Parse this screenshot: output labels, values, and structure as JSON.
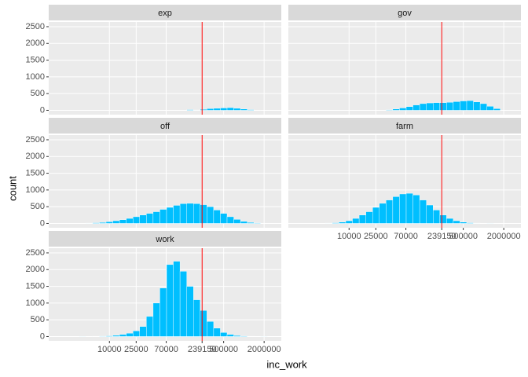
{
  "axis_labels": {
    "x": "inc_work",
    "y": "count"
  },
  "chart_data": [
    {
      "type": "histogram",
      "title": "exp",
      "log_x": true,
      "grid": true,
      "color": "#00bfff",
      "vline": 239150,
      "vline_color": "#ff0000",
      "bins": [
        3548,
        4467,
        5623,
        7079,
        8913,
        11220,
        14125,
        17783,
        22387,
        28184,
        35481,
        44668,
        56234,
        70795,
        89125,
        112202,
        141254,
        177828,
        223872,
        281838,
        354813,
        446684,
        562341,
        707946,
        891251,
        1122018,
        1412538,
        1778279,
        2238721
      ],
      "counts": [
        0,
        0,
        0,
        0,
        0,
        0,
        0,
        0,
        0,
        0,
        0,
        0,
        0,
        0,
        0,
        0,
        20,
        10,
        30,
        50,
        60,
        70,
        80,
        60,
        40,
        20,
        5,
        0
      ],
      "xlim": [
        1250,
        3600000
      ],
      "ylim": [
        -130,
        2640
      ],
      "xticks": [
        10000,
        25000,
        70000,
        239150,
        500000,
        2000000
      ],
      "yticks": [
        0,
        500,
        1000,
        1500,
        2000,
        2500
      ]
    },
    {
      "type": "histogram",
      "title": "gov",
      "log_x": true,
      "grid": true,
      "color": "#00bfff",
      "vline": 239150,
      "vline_color": "#ff0000",
      "bins": [
        3548,
        4467,
        5623,
        7079,
        8913,
        11220,
        14125,
        17783,
        22387,
        28184,
        35481,
        44668,
        56234,
        70795,
        89125,
        112202,
        141254,
        177828,
        223872,
        281838,
        354813,
        446684,
        562341,
        707946,
        891251,
        1122018,
        1412538,
        1778279,
        2238721
      ],
      "counts": [
        0,
        0,
        0,
        0,
        0,
        0,
        0,
        0,
        0,
        0,
        15,
        40,
        70,
        110,
        160,
        200,
        220,
        230,
        230,
        240,
        260,
        280,
        290,
        250,
        200,
        120,
        50,
        0
      ],
      "xlim": [
        1250,
        3600000
      ],
      "ylim": [
        -130,
        2640
      ],
      "xticks": [
        10000,
        25000,
        70000,
        239150,
        500000,
        2000000
      ],
      "yticks": [
        0,
        500,
        1000,
        1500,
        2000,
        2500
      ]
    },
    {
      "type": "histogram",
      "title": "off",
      "log_x": true,
      "grid": true,
      "color": "#00bfff",
      "vline": 239150,
      "vline_color": "#ff0000",
      "bins": [
        3548,
        4467,
        5623,
        7079,
        8913,
        11220,
        14125,
        17783,
        22387,
        28184,
        35481,
        44668,
        56234,
        70795,
        89125,
        112202,
        141254,
        177828,
        223872,
        281838,
        354813,
        446684,
        562341,
        707946,
        891251,
        1122018,
        1412538,
        1778279,
        2238721
      ],
      "counts": [
        5,
        10,
        20,
        30,
        50,
        80,
        110,
        150,
        200,
        250,
        300,
        350,
        420,
        480,
        540,
        590,
        600,
        590,
        560,
        500,
        400,
        300,
        200,
        120,
        60,
        30,
        15,
        5
      ],
      "xlim": [
        1250,
        3600000
      ],
      "ylim": [
        -130,
        2640
      ],
      "xticks": [
        10000,
        25000,
        70000,
        239150,
        500000,
        2000000
      ],
      "yticks": [
        0,
        500,
        1000,
        1500,
        2000,
        2500
      ]
    },
    {
      "type": "histogram",
      "title": "farm",
      "log_x": true,
      "grid": true,
      "color": "#00bfff",
      "vline": 239150,
      "vline_color": "#ff0000",
      "bins": [
        3548,
        4467,
        5623,
        7079,
        8913,
        11220,
        14125,
        17783,
        22387,
        28184,
        35481,
        44668,
        56234,
        70795,
        89125,
        112202,
        141254,
        177828,
        223872,
        281838,
        354813,
        446684,
        562341,
        707946,
        891251,
        1122018,
        1412538,
        1778279,
        2238721
      ],
      "counts": [
        5,
        10,
        20,
        40,
        80,
        150,
        250,
        350,
        480,
        600,
        700,
        800,
        880,
        900,
        850,
        700,
        550,
        400,
        250,
        150,
        80,
        40,
        20,
        10,
        5,
        3,
        0,
        0
      ],
      "xlim": [
        1250,
        3600000
      ],
      "ylim": [
        -130,
        2640
      ],
      "xticks": [
        10000,
        25000,
        70000,
        239150,
        500000,
        2000000
      ],
      "yticks": [
        0,
        500,
        1000,
        1500,
        2000,
        2500
      ]
    },
    {
      "type": "histogram",
      "title": "work",
      "log_x": true,
      "grid": true,
      "color": "#00bfff",
      "vline": 239150,
      "vline_color": "#ff0000",
      "bins": [
        3548,
        4467,
        5623,
        7079,
        8913,
        11220,
        14125,
        17783,
        22387,
        28184,
        35481,
        44668,
        56234,
        70795,
        89125,
        112202,
        141254,
        177828,
        223872,
        281838,
        354813,
        446684,
        562341,
        707946,
        891251,
        1122018,
        1412538,
        1778279,
        2238721
      ],
      "counts": [
        3,
        5,
        8,
        12,
        20,
        35,
        60,
        100,
        170,
        300,
        600,
        1000,
        1450,
        2150,
        2250,
        1950,
        1500,
        1100,
        780,
        450,
        250,
        120,
        60,
        30,
        15,
        8,
        5,
        3
      ],
      "xlim": [
        1250,
        3600000
      ],
      "ylim": [
        -130,
        2640
      ],
      "xticks": [
        10000,
        25000,
        70000,
        239150,
        500000,
        2000000
      ],
      "yticks": [
        0,
        500,
        1000,
        1500,
        2000,
        2500
      ]
    }
  ]
}
